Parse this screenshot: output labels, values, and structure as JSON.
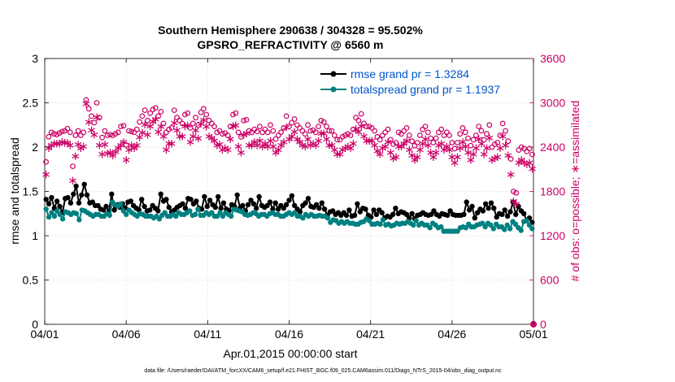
{
  "chart_data": {
    "type": "line",
    "title": "Southern Hemisphere 290638 / 304328 = 95.502%",
    "subtitle": "GPSRO_REFRACTIVITY @ 6560 m",
    "xlabel": "Apr.01,2015 00:00:00 start",
    "ylabel": "rmse and totalspread",
    "ylabel_right": "# of obs: o=possible; ∗=assimilated",
    "xlim": [
      0,
      30
    ],
    "ylim": [
      0,
      3
    ],
    "ylim_right": [
      0,
      3600
    ],
    "x_ticks": [
      0,
      5,
      10,
      15,
      20,
      25,
      30
    ],
    "x_tick_labels": [
      "04/01",
      "04/06",
      "04/11",
      "04/16",
      "04/21",
      "04/26",
      "05/01"
    ],
    "y_ticks": [
      0,
      0.5,
      1,
      1.5,
      2,
      2.5,
      3
    ],
    "y_tick_labels": [
      "0",
      "0.5",
      "1",
      "1.5",
      "2",
      "2.5",
      "3"
    ],
    "y_right_ticks": [
      0,
      600,
      1200,
      1800,
      2400,
      3000,
      3600
    ],
    "y_right_tick_labels": [
      "0",
      "600",
      "1200",
      "1800",
      "2400",
      "3000",
      "3600"
    ],
    "grid": true,
    "legend_position": "top-right",
    "footnote": "data file: /Users/raeder/DAI/ATM_forcXX/CAM6_setup/f.e21.FHIST_BGC.f09_025.CAM6assim.011/Diags_NTrS_2015-04/obs_diag_output.nc",
    "colors": {
      "rmse": "#000000",
      "spread": "#008080",
      "counts": "#cc0066",
      "legend_text": "#0055cc",
      "grid": "#dddddd"
    },
    "series": [
      {
        "name": "rmse grand pr = 1.3284",
        "axis": "left",
        "color": "#000000",
        "marker": "filled-circle",
        "values": [
          1.41,
          1.36,
          1.43,
          1.31,
          1.39,
          1.33,
          1.26,
          1.42,
          1.43,
          1.37,
          1.47,
          1.56,
          1.37,
          1.46,
          1.58,
          1.46,
          1.37,
          1.38,
          1.34,
          1.34,
          1.3,
          1.29,
          1.33,
          1.27,
          1.47,
          1.29,
          1.35,
          1.32,
          1.36,
          1.31,
          1.38,
          1.39,
          1.34,
          1.31,
          1.29,
          1.41,
          1.33,
          1.28,
          1.29,
          1.34,
          1.31,
          1.28,
          1.47,
          1.39,
          1.41,
          1.32,
          1.27,
          1.29,
          1.32,
          1.34,
          1.36,
          1.31,
          1.42,
          1.41,
          1.36,
          1.39,
          1.31,
          1.3,
          1.44,
          1.33,
          1.4,
          1.35,
          1.32,
          1.44,
          1.31,
          1.37,
          1.3,
          1.28,
          1.35,
          1.33,
          1.46,
          1.31,
          1.34,
          1.28,
          1.35,
          1.4,
          1.36,
          1.31,
          1.44,
          1.34,
          1.32,
          1.34,
          1.38,
          1.3,
          1.37,
          1.3,
          1.34,
          1.31,
          1.35,
          1.4,
          1.45,
          1.34,
          1.3,
          1.27,
          1.34,
          1.37,
          1.42,
          1.33,
          1.32,
          1.35,
          1.31,
          1.37,
          1.3,
          1.23,
          1.27,
          1.28,
          1.24,
          1.26,
          1.23,
          1.26,
          1.23,
          1.29,
          1.22,
          1.23,
          1.36,
          1.27,
          1.31,
          1.3,
          1.23,
          1.21,
          1.29,
          1.24,
          1.29,
          1.26,
          1.2,
          1.22,
          1.21,
          1.24,
          1.31,
          1.25,
          1.27,
          1.26,
          1.24,
          1.2,
          1.25,
          1.19,
          1.23,
          1.24,
          1.26,
          1.24,
          1.23,
          1.24,
          1.28,
          1.24,
          1.22,
          1.25,
          1.24,
          1.23,
          1.28,
          1.24,
          1.23,
          1.23,
          1.23,
          1.24,
          1.38,
          1.29,
          1.33,
          1.2,
          1.26,
          1.3,
          1.28,
          1.36,
          1.31,
          1.37,
          1.31,
          1.21,
          1.25,
          1.24,
          1.29,
          1.22,
          1.27,
          1.38,
          1.24,
          1.33,
          1.28,
          1.25,
          1.17,
          1.2,
          1.15
        ]
      },
      {
        "name": "totalspread grand pr = 1.1937",
        "axis": "left",
        "color": "#008080",
        "marker": "filled-circle",
        "values": [
          1.3,
          1.21,
          1.26,
          1.22,
          1.28,
          1.24,
          1.19,
          1.27,
          1.26,
          1.24,
          1.26,
          1.25,
          1.18,
          1.29,
          1.28,
          1.26,
          1.24,
          1.22,
          1.24,
          1.24,
          1.22,
          1.22,
          1.25,
          1.23,
          1.38,
          1.35,
          1.33,
          1.36,
          1.28,
          1.24,
          1.29,
          1.26,
          1.24,
          1.22,
          1.25,
          1.24,
          1.22,
          1.22,
          1.22,
          1.2,
          1.22,
          1.19,
          1.23,
          1.26,
          1.22,
          1.22,
          1.24,
          1.22,
          1.26,
          1.24,
          1.24,
          1.26,
          1.28,
          1.23,
          1.24,
          1.3,
          1.23,
          1.23,
          1.26,
          1.24,
          1.26,
          1.22,
          1.22,
          1.26,
          1.22,
          1.26,
          1.24,
          1.22,
          1.3,
          1.29,
          1.28,
          1.27,
          1.24,
          1.23,
          1.24,
          1.26,
          1.25,
          1.22,
          1.24,
          1.24,
          1.22,
          1.25,
          1.26,
          1.24,
          1.24,
          1.22,
          1.22,
          1.24,
          1.26,
          1.24,
          1.26,
          1.22,
          1.22,
          1.2,
          1.24,
          1.22,
          1.24,
          1.22,
          1.22,
          1.23,
          1.22,
          1.22,
          1.2,
          1.15,
          1.18,
          1.17,
          1.14,
          1.16,
          1.14,
          1.16,
          1.14,
          1.14,
          1.13,
          1.13,
          1.15,
          1.16,
          1.19,
          1.17,
          1.13,
          1.13,
          1.14,
          1.13,
          1.18,
          1.12,
          1.13,
          1.11,
          1.12,
          1.14,
          1.13,
          1.14,
          1.14,
          1.16,
          1.14,
          1.12,
          1.17,
          1.12,
          1.14,
          1.12,
          1.12,
          1.09,
          1.14,
          1.12,
          1.09,
          1.1,
          1.05,
          1.05,
          1.05,
          1.05,
          1.05,
          1.05,
          1.09,
          1.1,
          1.09,
          1.13,
          1.1,
          1.1,
          1.12,
          1.13,
          1.14,
          1.1,
          1.14,
          1.12,
          1.08,
          1.13,
          1.1,
          1.1,
          1.07,
          1.12,
          1.08,
          1.16,
          1.13,
          1.09,
          1.06,
          1.16,
          1.17,
          1.12,
          1.08
        ]
      },
      {
        "name": "possible",
        "axis": "right",
        "color": "#cc0066",
        "marker": "open-circle",
        "values": [
          2200,
          2540,
          2600,
          2580,
          2570,
          2590,
          2610,
          2620,
          2650,
          2600,
          2140,
          2560,
          2620,
          2560,
          2600,
          3040,
          2920,
          2820,
          2730,
          3000,
          2800,
          2530,
          2620,
          2560,
          2570,
          2560,
          2580,
          2600,
          2680,
          2690,
          2430,
          2620,
          2610,
          2600,
          2640,
          2740,
          2820,
          2900,
          2760,
          2860,
          2910,
          2930,
          2820,
          2880,
          2720,
          2600,
          2640,
          2660,
          2900,
          2800,
          2760,
          2720,
          2840,
          2860,
          2660,
          2720,
          2800,
          2700,
          2870,
          2920,
          2840,
          2760,
          2720,
          2680,
          2600,
          2620,
          2580,
          2590,
          2560,
          2680,
          2840,
          2860,
          2600,
          2540,
          2760,
          2770,
          2620,
          2600,
          2640,
          2610,
          2680,
          2600,
          2640,
          2600,
          2700,
          2620,
          2510,
          2560,
          2600,
          2660,
          2820,
          2680,
          2730,
          2780,
          2700,
          2660,
          2620,
          2580,
          2700,
          2620,
          2630,
          2600,
          2680,
          2760,
          2740,
          2680,
          2620,
          2620,
          2560,
          2500,
          2500,
          2540,
          2560,
          2580,
          2560,
          2640,
          2800,
          2760,
          2850,
          2720,
          2680,
          2680,
          2660,
          2620,
          2540,
          2500,
          2560,
          2600,
          2640,
          2500,
          2440,
          2460,
          2600,
          2580,
          2620,
          2660,
          2560,
          2480,
          2420,
          2460,
          2560,
          2640,
          2680,
          2600,
          2520,
          2460,
          2520,
          2600,
          2640,
          2560,
          2600,
          2560,
          2460,
          2380,
          2460,
          2580,
          2660,
          2600,
          2520,
          2420,
          2500,
          2560,
          2680,
          2620,
          2500,
          2580,
          2700,
          2400,
          2440,
          2460,
          2560,
          2720,
          2620,
          2480,
          2240,
          1800,
          1780,
          2360,
          2400,
          2380,
          2340,
          2380,
          2300
        ]
      },
      {
        "name": "assimilated",
        "axis": "right",
        "color": "#cc0066",
        "marker": "asterisk",
        "values": [
          2040,
          2400,
          2440,
          2460,
          2460,
          2460,
          2480,
          2470,
          2470,
          2440,
          1960,
          2290,
          2450,
          2400,
          2420,
          3000,
          2750,
          2640,
          2580,
          2820,
          2440,
          2320,
          2450,
          2330,
          2340,
          2300,
          2350,
          2400,
          2440,
          2480,
          2240,
          2380,
          2440,
          2400,
          2440,
          2550,
          2610,
          2720,
          2580,
          2700,
          2760,
          2790,
          2620,
          2690,
          2560,
          2380,
          2460,
          2460,
          2740,
          2640,
          2560,
          2560,
          2700,
          2710,
          2480,
          2560,
          2640,
          2530,
          2730,
          2780,
          2690,
          2560,
          2540,
          2500,
          2440,
          2450,
          2380,
          2400,
          2380,
          2520,
          2700,
          2710,
          2420,
          2340,
          2580,
          2600,
          2440,
          2440,
          2480,
          2440,
          2500,
          2420,
          2460,
          2420,
          2500,
          2420,
          2340,
          2380,
          2440,
          2480,
          2680,
          2520,
          2560,
          2620,
          2520,
          2480,
          2440,
          2420,
          2520,
          2440,
          2460,
          2440,
          2500,
          2600,
          2600,
          2520,
          2440,
          2440,
          2380,
          2320,
          2320,
          2380,
          2400,
          2420,
          2400,
          2460,
          2660,
          2620,
          2700,
          2560,
          2500,
          2500,
          2500,
          2440,
          2360,
          2320,
          2400,
          2420,
          2480,
          2340,
          2260,
          2280,
          2420,
          2420,
          2460,
          2500,
          2380,
          2300,
          2240,
          2280,
          2380,
          2460,
          2520,
          2440,
          2340,
          2280,
          2340,
          2440,
          2460,
          2380,
          2420,
          2380,
          2280,
          2200,
          2280,
          2400,
          2480,
          2420,
          2340,
          2240,
          2320,
          2400,
          2520,
          2460,
          2320,
          2400,
          2540,
          2240,
          2260,
          2280,
          2400,
          2560,
          2440,
          2300,
          2040,
          1680,
          1640,
          2200,
          2240,
          2200,
          2180,
          2200,
          2120
        ]
      }
    ]
  }
}
